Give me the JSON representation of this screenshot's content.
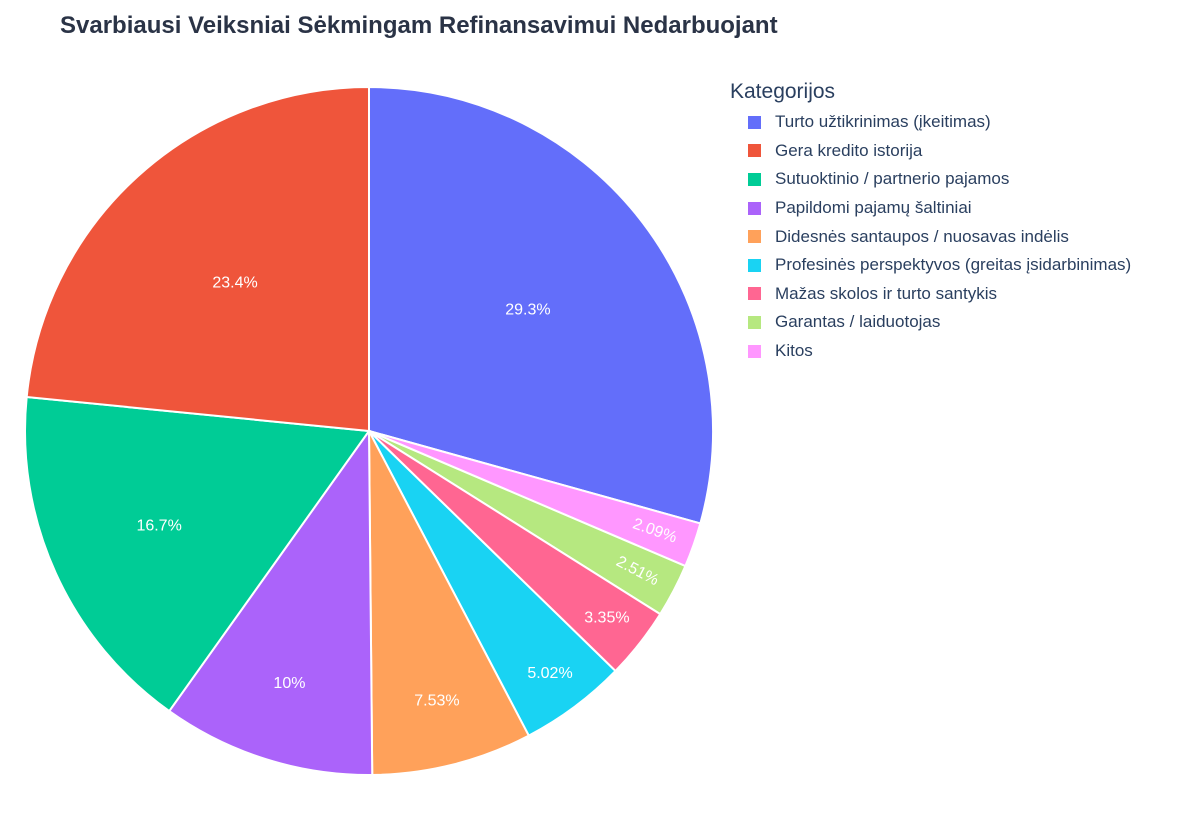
{
  "chart_data": {
    "type": "pie",
    "title": "Svarbiausi Veiksniai Sėkmingam Refinansavimui Nedarbuojant",
    "legend_title": "Kategorijos",
    "legend_placement": "top-right",
    "direction": "counterclockwise",
    "categories": [
      "Turto užtikrinimas (įkeitimas)",
      "Gera kredito istorija",
      "Sutuoktinio / partnerio pajamos",
      "Papildomi pajamų šaltiniai",
      "Didesnės santaupos / nuosavas indėlis",
      "Profesinės perspektyvos (greitas įsidarbinimas)",
      "Mažas skolos ir turto santykis",
      "Garantas / laiduotojas",
      "Kitos"
    ],
    "values": [
      29.3,
      23.4,
      16.7,
      10,
      7.53,
      5.02,
      3.35,
      2.51,
      2.09
    ],
    "labels": [
      "29.3%",
      "23.4%",
      "16.7%",
      "10%",
      "7.53%",
      "5.02%",
      "3.35%",
      "2.51%",
      "2.09%"
    ],
    "colors": [
      "#636efa",
      "#EF553B",
      "#00cc96",
      "#ab63fa",
      "#FFA15A",
      "#19d3f3",
      "#FF6692",
      "#B6E880",
      "#FF97FF"
    ]
  }
}
